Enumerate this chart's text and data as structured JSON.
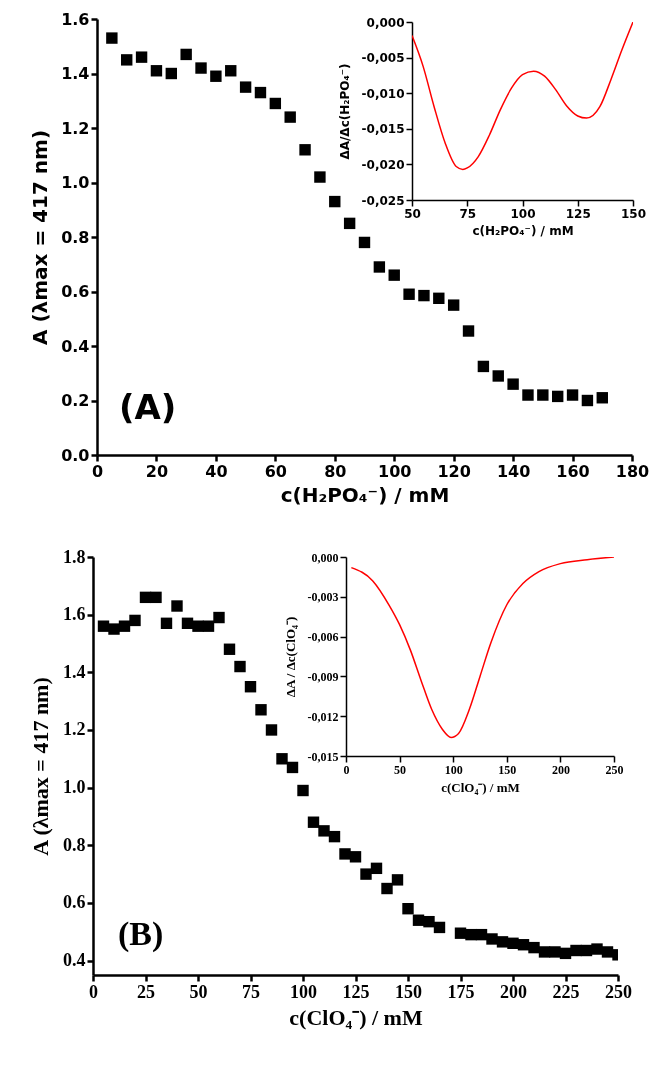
{
  "chart_data": [
    {
      "type": "scatter",
      "xlabel": "c(H₂PO₄⁻) / mM",
      "ylabel": "A (λmax = 417 nm)",
      "annotations": [
        "(A)"
      ],
      "marker": "square",
      "color": "#000000",
      "x": [
        5,
        10,
        15,
        20,
        25,
        30,
        35,
        40,
        45,
        50,
        55,
        60,
        65,
        70,
        75,
        80,
        85,
        90,
        95,
        100,
        105,
        110,
        115,
        120,
        125,
        130,
        135,
        140,
        145,
        150,
        155,
        160,
        165,
        170
      ],
      "values": [
        1.53,
        1.45,
        1.46,
        1.41,
        1.4,
        1.47,
        1.42,
        1.39,
        1.41,
        1.35,
        1.33,
        1.29,
        1.24,
        1.12,
        1.02,
        0.93,
        0.85,
        0.78,
        0.69,
        0.66,
        0.59,
        0.585,
        0.575,
        0.55,
        0.455,
        0.325,
        0.29,
        0.26,
        0.22,
        0.22,
        0.215,
        0.22,
        0.2,
        0.21
      ],
      "xlim": [
        0,
        180
      ],
      "xticks": [
        0,
        20,
        40,
        60,
        80,
        100,
        120,
        140,
        160,
        180
      ],
      "ylim": [
        0,
        1.6
      ],
      "yticks": [
        {
          "value": 0,
          "label": "0.0"
        },
        0.2,
        0.4,
        0.6,
        0.8,
        {
          "value": 1,
          "label": "1.0"
        },
        1.2,
        1.4,
        1.6
      ]
    },
    {
      "type": "line",
      "xlabel": "c(H₂PO₄⁻) / mM",
      "ylabel": "ΔA/Δc(H₂PO₄⁻)",
      "color": "#ff0000",
      "x": [
        50,
        55,
        60,
        65,
        70,
        73,
        75,
        80,
        85,
        90,
        95,
        100,
        105,
        110,
        115,
        120,
        125,
        129,
        135,
        140,
        145,
        150
      ],
      "values": [
        -0.0019,
        -0.0062,
        -0.0119,
        -0.017,
        -0.0203,
        -0.0207,
        -0.0205,
        -0.0189,
        -0.0159,
        -0.0123,
        -0.0093,
        -0.0074,
        -0.0069,
        -0.0076,
        -0.0095,
        -0.0118,
        -0.0132,
        -0.0135,
        -0.0119,
        -0.0081,
        -0.0039,
        0
      ],
      "xlim": [
        50,
        150
      ],
      "xticks": [
        50,
        75,
        100,
        125,
        150
      ],
      "ylim": [
        -0.025,
        0
      ],
      "yticks": [
        {
          "value": -0.025,
          "label": "-0,025"
        },
        {
          "value": -0.02,
          "label": "-0,020"
        },
        {
          "value": -0.015,
          "label": "-0,015"
        },
        {
          "value": -0.01,
          "label": "-0,010"
        },
        {
          "value": -0.005,
          "label": "-0,005"
        },
        {
          "value": 0,
          "label": "0,000"
        }
      ]
    },
    {
      "type": "scatter",
      "xlabel": "c(ClO₄⁻) / mM",
      "ylabel": "A (λmax = 417 nm)",
      "annotations": [
        "(B)"
      ],
      "marker": "square",
      "color": "#000000",
      "x": [
        5,
        10,
        15,
        20,
        25,
        30,
        35,
        40,
        45,
        50,
        55,
        60,
        65,
        70,
        75,
        80,
        85,
        90,
        95,
        100,
        105,
        110,
        115,
        120,
        125,
        130,
        135,
        140,
        145,
        150,
        155,
        160,
        165,
        175,
        180,
        185,
        190,
        195,
        200,
        205,
        210,
        215,
        220,
        225,
        230,
        235,
        240,
        245,
        250
      ],
      "values": [
        1.56,
        1.55,
        1.56,
        1.58,
        1.66,
        1.66,
        1.57,
        1.63,
        1.57,
        1.56,
        1.56,
        1.59,
        1.48,
        1.42,
        1.35,
        1.27,
        1.2,
        1.1,
        1.07,
        0.99,
        0.88,
        0.85,
        0.83,
        0.77,
        0.76,
        0.7,
        0.72,
        0.65,
        0.68,
        0.58,
        0.54,
        0.535,
        0.515,
        0.495,
        0.49,
        0.49,
        0.475,
        0.465,
        0.46,
        0.455,
        0.445,
        0.43,
        0.43,
        0.425,
        0.435,
        0.435,
        0.44,
        0.43,
        0.42
      ],
      "xlim": [
        0,
        250
      ],
      "xticks": [
        0,
        25,
        50,
        75,
        100,
        125,
        150,
        175,
        200,
        225,
        250
      ],
      "ylim": [
        0.35,
        1.8
      ],
      "yticks": [
        0.4,
        0.6,
        0.8,
        {
          "value": 1,
          "label": "1.0"
        },
        1.2,
        1.4,
        1.6,
        1.8
      ]
    },
    {
      "type": "line",
      "xlabel": "c(ClO₄⁻) / mM",
      "ylabel": "ΔA / Δc(ClO₄⁻)",
      "color": "#ff0000",
      "x": [
        5,
        25,
        40,
        50,
        60,
        70,
        80,
        90,
        98,
        105,
        115,
        125,
        135,
        150,
        165,
        180,
        200,
        225,
        250
      ],
      "values": [
        -0.0008,
        -0.0018,
        -0.0036,
        -0.0051,
        -0.007,
        -0.0093,
        -0.0115,
        -0.013,
        -0.0136,
        -0.0133,
        -0.0115,
        -0.009,
        -0.0065,
        -0.0036,
        -0.002,
        -0.0011,
        -0.0005,
        -0.0002,
        0
      ],
      "xlim": [
        0,
        250
      ],
      "xticks": [
        0,
        50,
        100,
        150,
        200,
        250
      ],
      "ylim": [
        -0.015,
        0
      ],
      "yticks": [
        {
          "value": -0.015,
          "label": "-0,015"
        },
        {
          "value": -0.012,
          "label": "-0,012"
        },
        {
          "value": -0.009,
          "label": "-0,009"
        },
        {
          "value": -0.006,
          "label": "-0,006"
        },
        {
          "value": -0.003,
          "label": "-0,003"
        },
        {
          "value": 0,
          "label": "0,000"
        }
      ]
    }
  ]
}
